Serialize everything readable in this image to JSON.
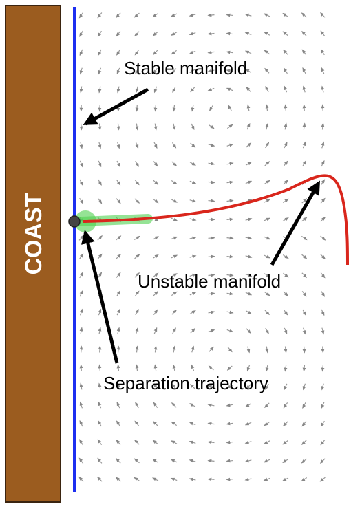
{
  "coast": {
    "label": "COAST"
  },
  "annotations": {
    "stable": "Stable manifold",
    "unstable": "Unstable manifold",
    "separation": "Separation trajectory"
  }
}
